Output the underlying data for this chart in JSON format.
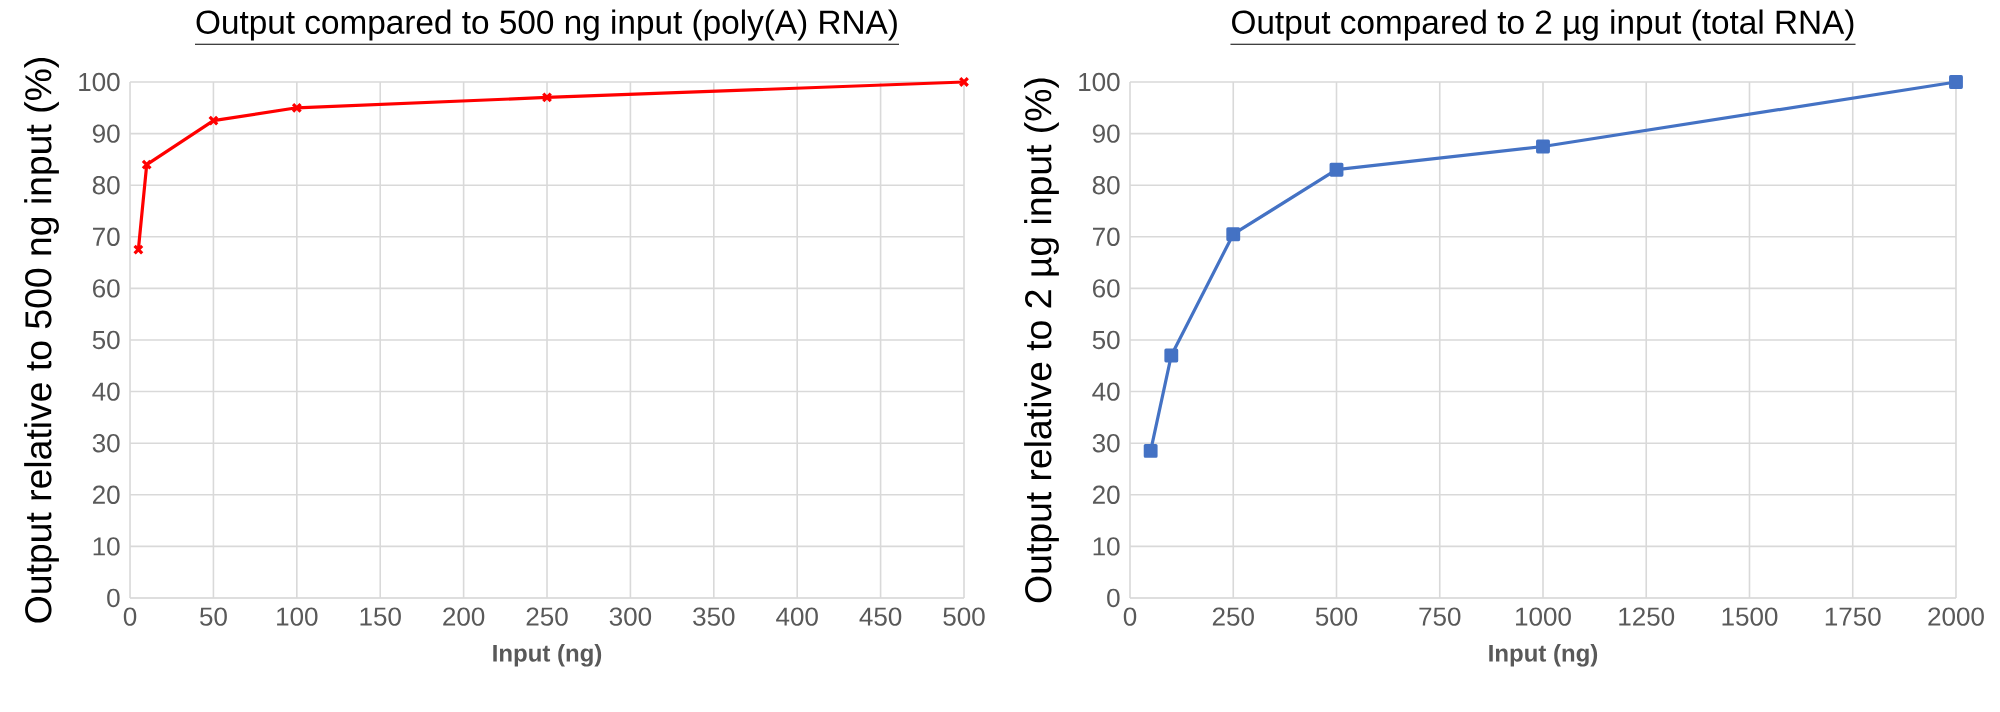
{
  "chart_data": [
    {
      "type": "line",
      "title": "Output compared to 500 ng input (poly(A) RNA)",
      "xlabel": "Input (ng)",
      "ylabel": "Output relative to 500 ng input (%)",
      "x": [
        5,
        10,
        50,
        100,
        250,
        500
      ],
      "series": [
        {
          "color": "#ff0000",
          "values": [
            67.5,
            84,
            92.5,
            95,
            97,
            100
          ]
        }
      ],
      "xlim": [
        0,
        500
      ],
      "ylim": [
        0,
        100
      ],
      "xticks": [
        0,
        50,
        100,
        150,
        200,
        250,
        300,
        350,
        400,
        450,
        500
      ],
      "yticks": [
        0,
        10,
        20,
        30,
        40,
        50,
        60,
        70,
        80,
        90,
        100
      ],
      "grid": true,
      "marker": "cross"
    },
    {
      "type": "line",
      "title": "Output compared to 2 µg input (total RNA)",
      "xlabel": "Input (ng)",
      "ylabel": "Output relative to 2 µg input (%)",
      "x": [
        50,
        100,
        250,
        500,
        1000,
        2000
      ],
      "series": [
        {
          "color": "#4472c4",
          "values": [
            28.5,
            47,
            70.5,
            83,
            87.5,
            100
          ]
        }
      ],
      "xlim": [
        0,
        2000
      ],
      "ylim": [
        0,
        100
      ],
      "xticks": [
        0,
        250,
        500,
        750,
        1000,
        1250,
        1500,
        1750,
        2000
      ],
      "yticks": [
        0,
        10,
        20,
        30,
        40,
        50,
        60,
        70,
        80,
        90,
        100
      ],
      "grid": true,
      "marker": "square"
    }
  ]
}
